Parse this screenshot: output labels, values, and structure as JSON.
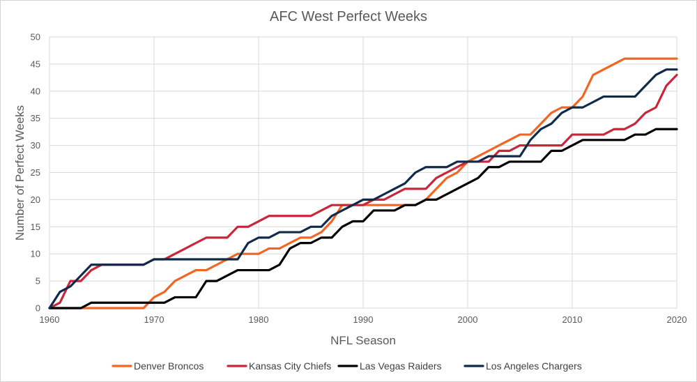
{
  "chart_data": {
    "type": "line",
    "title": "AFC West Perfect Weeks",
    "xlabel": "NFL Season",
    "ylabel": "Number of Perfect Weeks",
    "xlim": [
      1960,
      2020
    ],
    "ylim": [
      0,
      50
    ],
    "x_ticks": [
      1960,
      1970,
      1980,
      1990,
      2000,
      2010,
      2020
    ],
    "y_ticks": [
      0,
      5,
      10,
      15,
      20,
      25,
      30,
      35,
      40,
      45,
      50
    ],
    "grid": true,
    "legend_position": "bottom",
    "x": [
      1960,
      1961,
      1962,
      1963,
      1964,
      1965,
      1966,
      1967,
      1968,
      1969,
      1970,
      1971,
      1972,
      1973,
      1974,
      1975,
      1976,
      1977,
      1978,
      1979,
      1980,
      1981,
      1982,
      1983,
      1984,
      1985,
      1986,
      1987,
      1988,
      1989,
      1990,
      1991,
      1992,
      1993,
      1994,
      1995,
      1996,
      1997,
      1998,
      1999,
      2000,
      2001,
      2002,
      2003,
      2004,
      2005,
      2006,
      2007,
      2008,
      2009,
      2010,
      2011,
      2012,
      2013,
      2014,
      2015,
      2016,
      2017,
      2018,
      2019,
      2020
    ],
    "series": [
      {
        "name": "Denver Broncos",
        "color": "#f26522",
        "values": [
          0,
          0,
          0,
          0,
          0,
          0,
          0,
          0,
          0,
          0,
          2,
          3,
          5,
          6,
          7,
          7,
          8,
          9,
          10,
          10,
          10,
          11,
          11,
          12,
          13,
          13,
          14,
          16,
          19,
          19,
          19,
          19,
          19,
          19,
          19,
          19,
          20,
          22,
          24,
          25,
          27,
          28,
          29,
          30,
          31,
          32,
          32,
          34,
          36,
          37,
          37,
          39,
          43,
          44,
          45,
          46,
          46,
          46,
          46,
          46,
          46
        ]
      },
      {
        "name": "Kansas City Chiefs",
        "color": "#c8273a",
        "values": [
          0,
          1,
          5,
          5,
          7,
          8,
          8,
          8,
          8,
          8,
          9,
          9,
          10,
          11,
          12,
          13,
          13,
          13,
          15,
          15,
          16,
          17,
          17,
          17,
          17,
          17,
          18,
          19,
          19,
          19,
          19,
          20,
          20,
          21,
          22,
          22,
          22,
          24,
          25,
          26,
          27,
          27,
          27,
          29,
          29,
          30,
          30,
          30,
          30,
          30,
          32,
          32,
          32,
          32,
          33,
          33,
          34,
          36,
          37,
          41,
          43
        ]
      },
      {
        "name": "Las Vegas Raiders",
        "color": "#000000",
        "values": [
          0,
          0,
          0,
          0,
          1,
          1,
          1,
          1,
          1,
          1,
          1,
          1,
          2,
          2,
          2,
          5,
          5,
          6,
          7,
          7,
          7,
          7,
          8,
          11,
          12,
          12,
          13,
          13,
          15,
          16,
          16,
          18,
          18,
          18,
          19,
          19,
          20,
          20,
          21,
          22,
          23,
          24,
          26,
          26,
          27,
          27,
          27,
          27,
          29,
          29,
          30,
          31,
          31,
          31,
          31,
          31,
          32,
          32,
          33,
          33,
          33
        ]
      },
      {
        "name": "Los Angeles Chargers",
        "color": "#0f2a4a",
        "values": [
          0,
          3,
          4,
          6,
          8,
          8,
          8,
          8,
          8,
          8,
          9,
          9,
          9,
          9,
          9,
          9,
          9,
          9,
          9,
          12,
          13,
          13,
          14,
          14,
          14,
          15,
          15,
          17,
          18,
          19,
          20,
          20,
          21,
          22,
          23,
          25,
          26,
          26,
          26,
          27,
          27,
          27,
          28,
          28,
          28,
          28,
          31,
          33,
          34,
          36,
          37,
          37,
          38,
          39,
          39,
          39,
          39,
          41,
          43,
          44,
          44
        ]
      }
    ]
  }
}
